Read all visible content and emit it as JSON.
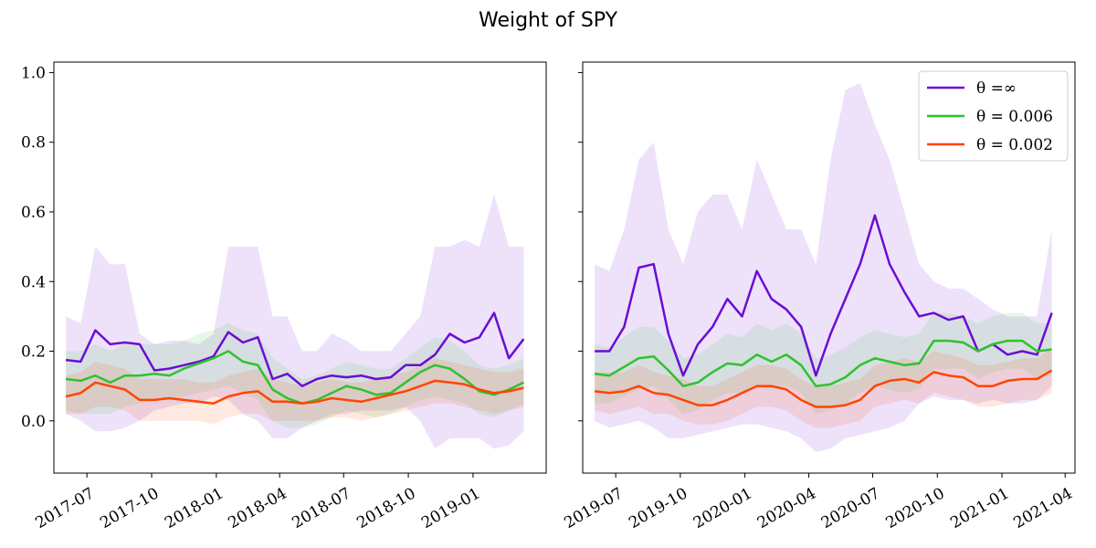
{
  "title": "Weight of SPY",
  "colors": {
    "theta_inf": "#6a0dd4",
    "theta_0006": "#2ec22e",
    "theta_0002": "#ff4500"
  },
  "chart_data": [
    {
      "type": "line",
      "panel": "left",
      "xlabel": "",
      "ylabel": "",
      "xlim": [
        "2017-05-15",
        "2019-04-15"
      ],
      "ylim": [
        -0.15,
        1.03
      ],
      "yticks": [
        "0.0",
        "0.2",
        "0.4",
        "0.6",
        "0.8",
        "1.0"
      ],
      "ytick_values": [
        0.0,
        0.2,
        0.4,
        0.6,
        0.8,
        1.0
      ],
      "xtick_labels": [
        "2017-07",
        "2017-10",
        "2018-01",
        "2018-04",
        "2018-07",
        "2018-10",
        "2019-01"
      ],
      "xtick_dates": [
        "2017-07-01",
        "2017-10-01",
        "2018-01-01",
        "2018-04-01",
        "2018-07-01",
        "2018-10-01",
        "2019-01-01"
      ],
      "grid": false,
      "x": [
        "2017-06-01",
        "2017-06-22",
        "2017-07-13",
        "2017-08-03",
        "2017-08-24",
        "2017-09-14",
        "2017-10-05",
        "2017-10-26",
        "2017-11-16",
        "2017-12-07",
        "2017-12-28",
        "2018-01-18",
        "2018-02-08",
        "2018-03-01",
        "2018-03-22",
        "2018-04-12",
        "2018-05-03",
        "2018-05-24",
        "2018-06-14",
        "2018-07-05",
        "2018-07-26",
        "2018-08-16",
        "2018-09-06",
        "2018-09-27",
        "2018-10-18",
        "2018-11-08",
        "2018-11-29",
        "2018-12-20",
        "2019-01-10",
        "2019-01-31",
        "2019-02-21",
        "2019-03-14"
      ],
      "series": [
        {
          "name": "θ = ∞",
          "color_key": "theta_inf",
          "values": [
            0.175,
            0.17,
            0.26,
            0.22,
            0.225,
            0.22,
            0.145,
            0.15,
            0.16,
            0.17,
            0.185,
            0.255,
            0.225,
            0.24,
            0.12,
            0.135,
            0.1,
            0.12,
            0.13,
            0.125,
            0.13,
            0.12,
            0.125,
            0.16,
            0.16,
            0.19,
            0.25,
            0.225,
            0.24,
            0.31,
            0.18,
            0.235
          ],
          "lower": [
            0.02,
            0.0,
            -0.03,
            -0.03,
            -0.02,
            0.0,
            0.03,
            0.04,
            0.05,
            0.05,
            0.07,
            0.06,
            0.02,
            0.0,
            -0.05,
            -0.05,
            -0.02,
            0.0,
            0.02,
            0.02,
            0.03,
            0.03,
            0.03,
            0.04,
            0.0,
            -0.08,
            -0.05,
            -0.05,
            -0.05,
            -0.08,
            -0.07,
            -0.03
          ],
          "upper": [
            0.3,
            0.28,
            0.5,
            0.45,
            0.45,
            0.25,
            0.22,
            0.23,
            0.23,
            0.22,
            0.25,
            0.5,
            0.5,
            0.5,
            0.3,
            0.3,
            0.2,
            0.2,
            0.25,
            0.23,
            0.2,
            0.2,
            0.2,
            0.25,
            0.3,
            0.5,
            0.5,
            0.52,
            0.5,
            0.65,
            0.5,
            0.5
          ]
        },
        {
          "name": "θ = 0.006",
          "color_key": "theta_0006",
          "values": [
            0.12,
            0.115,
            0.13,
            0.11,
            0.13,
            0.13,
            0.135,
            0.13,
            0.15,
            0.165,
            0.18,
            0.2,
            0.17,
            0.16,
            0.09,
            0.065,
            0.05,
            0.06,
            0.08,
            0.1,
            0.09,
            0.075,
            0.08,
            0.11,
            0.14,
            0.16,
            0.15,
            0.12,
            0.085,
            0.075,
            0.09,
            0.11
          ],
          "lower": [
            0.03,
            0.02,
            0.02,
            0.02,
            0.04,
            0.05,
            0.06,
            0.06,
            0.07,
            0.08,
            0.09,
            0.1,
            0.08,
            0.06,
            0.0,
            -0.02,
            -0.02,
            -0.01,
            0.01,
            0.03,
            0.02,
            0.01,
            0.02,
            0.04,
            0.06,
            0.07,
            0.06,
            0.05,
            0.02,
            0.01,
            0.03,
            0.05
          ],
          "upper": [
            0.2,
            0.2,
            0.22,
            0.2,
            0.22,
            0.22,
            0.22,
            0.22,
            0.23,
            0.25,
            0.26,
            0.28,
            0.26,
            0.25,
            0.18,
            0.15,
            0.12,
            0.13,
            0.15,
            0.17,
            0.16,
            0.15,
            0.15,
            0.18,
            0.21,
            0.24,
            0.23,
            0.2,
            0.16,
            0.15,
            0.16,
            0.18
          ]
        },
        {
          "name": "θ = 0.002",
          "color_key": "theta_0002",
          "values": [
            0.07,
            0.08,
            0.11,
            0.1,
            0.09,
            0.06,
            0.06,
            0.065,
            0.06,
            0.055,
            0.05,
            0.07,
            0.08,
            0.085,
            0.055,
            0.055,
            0.05,
            0.055,
            0.065,
            0.06,
            0.055,
            0.065,
            0.075,
            0.085,
            0.1,
            0.115,
            0.11,
            0.105,
            0.09,
            0.08,
            0.085,
            0.095
          ],
          "lower": [
            0.02,
            0.02,
            0.04,
            0.04,
            0.03,
            0.0,
            0.0,
            0.0,
            0.0,
            0.0,
            -0.01,
            0.01,
            0.02,
            0.02,
            0.0,
            0.0,
            0.0,
            0.0,
            0.01,
            0.01,
            0.0,
            0.01,
            0.02,
            0.03,
            0.04,
            0.05,
            0.05,
            0.04,
            0.03,
            0.02,
            0.03,
            0.04
          ],
          "upper": [
            0.13,
            0.14,
            0.17,
            0.16,
            0.15,
            0.12,
            0.12,
            0.12,
            0.12,
            0.11,
            0.11,
            0.13,
            0.14,
            0.15,
            0.12,
            0.11,
            0.1,
            0.11,
            0.12,
            0.11,
            0.11,
            0.12,
            0.13,
            0.14,
            0.16,
            0.18,
            0.17,
            0.16,
            0.15,
            0.14,
            0.14,
            0.15
          ]
        }
      ]
    },
    {
      "type": "line",
      "panel": "right",
      "xlabel": "",
      "ylabel": "",
      "xlim": [
        "2019-05-15",
        "2021-04-15"
      ],
      "ylim": [
        -0.15,
        1.03
      ],
      "yticks": [
        "0.0",
        "0.2",
        "0.4",
        "0.6",
        "0.8",
        "1.0"
      ],
      "ytick_values": [
        0.0,
        0.2,
        0.4,
        0.6,
        0.8,
        1.0
      ],
      "xtick_labels": [
        "2019-07",
        "2019-10",
        "2020-01",
        "2020-04",
        "2020-07",
        "2020-10",
        "2021-01",
        "2021-04"
      ],
      "xtick_dates": [
        "2019-07-01",
        "2019-10-01",
        "2020-01-01",
        "2020-04-01",
        "2020-07-01",
        "2020-10-01",
        "2021-01-01",
        "2021-04-01"
      ],
      "grid": false,
      "legend_position": "top-right",
      "x": [
        "2019-06-01",
        "2019-06-22",
        "2019-07-13",
        "2019-08-03",
        "2019-08-24",
        "2019-09-14",
        "2019-10-05",
        "2019-10-26",
        "2019-11-16",
        "2019-12-07",
        "2019-12-28",
        "2020-01-18",
        "2020-02-08",
        "2020-02-29",
        "2020-03-21",
        "2020-04-11",
        "2020-05-02",
        "2020-05-23",
        "2020-06-13",
        "2020-07-04",
        "2020-07-25",
        "2020-08-15",
        "2020-09-05",
        "2020-09-26",
        "2020-10-17",
        "2020-11-07",
        "2020-11-28",
        "2020-12-19",
        "2021-01-09",
        "2021-01-30",
        "2021-02-20",
        "2021-03-13"
      ],
      "series": [
        {
          "name": "θ =∞",
          "color_key": "theta_inf",
          "values": [
            0.2,
            0.2,
            0.27,
            0.44,
            0.45,
            0.25,
            0.13,
            0.22,
            0.27,
            0.35,
            0.3,
            0.43,
            0.35,
            0.32,
            0.27,
            0.13,
            0.25,
            0.35,
            0.45,
            0.59,
            0.45,
            0.37,
            0.3,
            0.31,
            0.29,
            0.3,
            0.2,
            0.22,
            0.19,
            0.2,
            0.19,
            0.31
          ],
          "lower": [
            0.0,
            -0.02,
            -0.01,
            0.0,
            -0.02,
            -0.05,
            -0.05,
            -0.04,
            -0.03,
            -0.02,
            -0.01,
            -0.01,
            -0.02,
            -0.03,
            -0.05,
            -0.09,
            -0.08,
            -0.05,
            -0.04,
            -0.03,
            -0.02,
            0.0,
            0.05,
            0.07,
            0.06,
            0.06,
            0.05,
            0.06,
            0.05,
            0.05,
            0.06,
            0.1
          ],
          "upper": [
            0.45,
            0.43,
            0.55,
            0.75,
            0.8,
            0.55,
            0.45,
            0.6,
            0.65,
            0.65,
            0.55,
            0.75,
            0.65,
            0.55,
            0.55,
            0.45,
            0.75,
            0.95,
            0.97,
            0.85,
            0.75,
            0.6,
            0.45,
            0.4,
            0.38,
            0.38,
            0.35,
            0.32,
            0.3,
            0.3,
            0.3,
            0.55
          ]
        },
        {
          "name": "θ = 0.006",
          "color_key": "theta_0006",
          "values": [
            0.135,
            0.13,
            0.155,
            0.18,
            0.185,
            0.145,
            0.1,
            0.11,
            0.14,
            0.165,
            0.16,
            0.19,
            0.17,
            0.19,
            0.16,
            0.1,
            0.105,
            0.125,
            0.16,
            0.18,
            0.17,
            0.16,
            0.165,
            0.23,
            0.23,
            0.225,
            0.2,
            0.22,
            0.23,
            0.23,
            0.2,
            0.205
          ],
          "lower": [
            0.05,
            0.05,
            0.07,
            0.09,
            0.1,
            0.06,
            0.02,
            0.03,
            0.06,
            0.08,
            0.08,
            0.1,
            0.09,
            0.1,
            0.08,
            0.02,
            0.03,
            0.05,
            0.08,
            0.1,
            0.09,
            0.08,
            0.09,
            0.15,
            0.15,
            0.15,
            0.12,
            0.14,
            0.15,
            0.15,
            0.12,
            0.13
          ],
          "upper": [
            0.22,
            0.21,
            0.24,
            0.27,
            0.27,
            0.23,
            0.18,
            0.19,
            0.22,
            0.25,
            0.24,
            0.28,
            0.26,
            0.28,
            0.25,
            0.18,
            0.19,
            0.21,
            0.24,
            0.26,
            0.25,
            0.24,
            0.25,
            0.31,
            0.31,
            0.3,
            0.28,
            0.3,
            0.31,
            0.31,
            0.28,
            0.28
          ]
        },
        {
          "name": "θ = 0.002",
          "color_key": "theta_0002",
          "values": [
            0.085,
            0.08,
            0.085,
            0.1,
            0.08,
            0.075,
            0.06,
            0.045,
            0.045,
            0.06,
            0.08,
            0.1,
            0.1,
            0.09,
            0.06,
            0.04,
            0.04,
            0.045,
            0.06,
            0.1,
            0.115,
            0.12,
            0.11,
            0.14,
            0.13,
            0.125,
            0.1,
            0.1,
            0.115,
            0.12,
            0.12,
            0.145
          ],
          "lower": [
            0.03,
            0.02,
            0.03,
            0.04,
            0.02,
            0.02,
            0.0,
            -0.01,
            -0.01,
            0.0,
            0.02,
            0.04,
            0.04,
            0.03,
            0.0,
            -0.02,
            -0.02,
            -0.01,
            0.0,
            0.04,
            0.05,
            0.06,
            0.05,
            0.08,
            0.07,
            0.06,
            0.04,
            0.04,
            0.05,
            0.06,
            0.06,
            0.08
          ],
          "upper": [
            0.14,
            0.14,
            0.14,
            0.16,
            0.14,
            0.13,
            0.12,
            0.1,
            0.1,
            0.12,
            0.14,
            0.16,
            0.16,
            0.15,
            0.12,
            0.1,
            0.1,
            0.11,
            0.12,
            0.16,
            0.17,
            0.18,
            0.17,
            0.2,
            0.19,
            0.18,
            0.16,
            0.16,
            0.17,
            0.18,
            0.18,
            0.21
          ]
        }
      ]
    }
  ]
}
